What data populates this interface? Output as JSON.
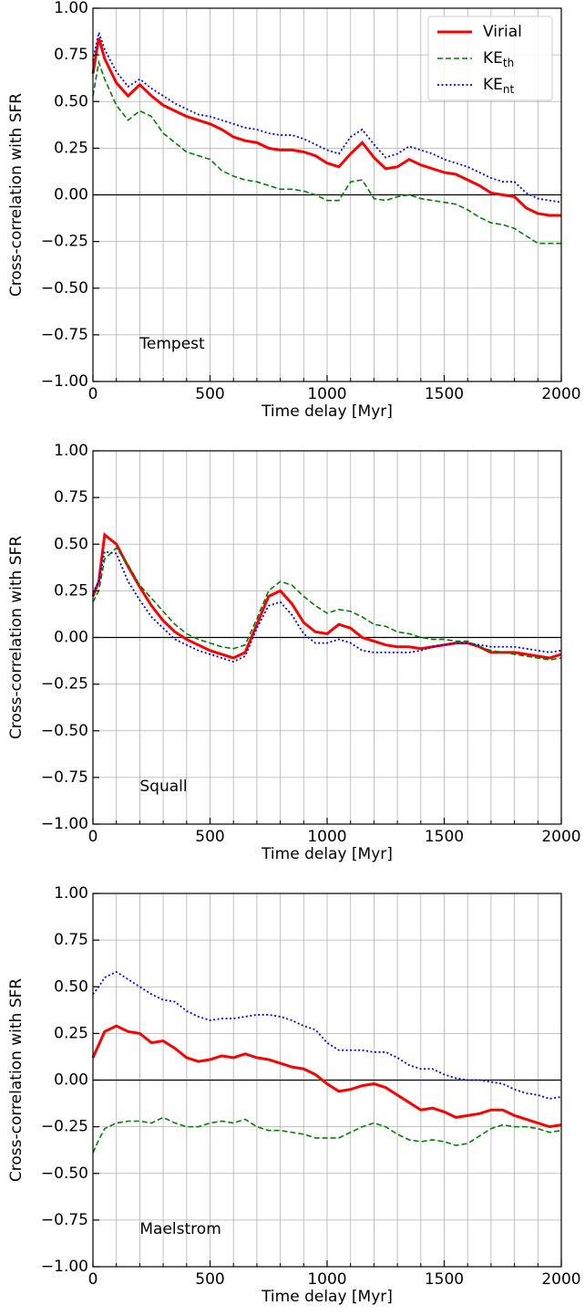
{
  "chart_data": [
    {
      "type": "line",
      "annotation": {
        "text": "Tempest",
        "x": 200,
        "y": -0.8
      },
      "xlabel": "Time delay [Myr]",
      "ylabel": "Cross-correlation with SFR",
      "x": [
        0,
        25,
        50,
        100,
        150,
        200,
        250,
        300,
        350,
        400,
        450,
        500,
        550,
        600,
        650,
        700,
        750,
        800,
        850,
        900,
        950,
        1000,
        1050,
        1100,
        1150,
        1200,
        1250,
        1300,
        1350,
        1400,
        1450,
        1500,
        1550,
        1600,
        1650,
        1700,
        1750,
        1800,
        1850,
        1900,
        1950,
        2000
      ],
      "series": [
        {
          "name": "Virial",
          "color": "#ff0000",
          "dash": "solid",
          "values": [
            0.65,
            0.84,
            0.73,
            0.6,
            0.53,
            0.59,
            0.53,
            0.48,
            0.45,
            0.42,
            0.4,
            0.38,
            0.35,
            0.31,
            0.29,
            0.28,
            0.25,
            0.24,
            0.24,
            0.23,
            0.21,
            0.17,
            0.15,
            0.22,
            0.28,
            0.2,
            0.14,
            0.15,
            0.19,
            0.16,
            0.14,
            0.12,
            0.11,
            0.08,
            0.05,
            0.01,
            0.0,
            -0.01,
            -0.07,
            -0.1,
            -0.11,
            -0.11
          ]
        },
        {
          "name": "KE",
          "name_sub": "th",
          "color": "#008000",
          "dash": "dashed",
          "values": [
            0.53,
            0.71,
            0.62,
            0.48,
            0.4,
            0.45,
            0.42,
            0.33,
            0.28,
            0.23,
            0.21,
            0.19,
            0.13,
            0.1,
            0.08,
            0.07,
            0.05,
            0.03,
            0.03,
            0.02,
            0.0,
            -0.03,
            -0.03,
            0.07,
            0.08,
            -0.02,
            -0.03,
            -0.01,
            0.0,
            -0.02,
            -0.03,
            -0.04,
            -0.05,
            -0.08,
            -0.12,
            -0.15,
            -0.16,
            -0.18,
            -0.22,
            -0.26,
            -0.26,
            -0.26
          ]
        },
        {
          "name": "KE",
          "name_sub": "nt",
          "color": "#0000ff",
          "dash": "dotted",
          "values": [
            0.72,
            0.87,
            0.78,
            0.66,
            0.58,
            0.62,
            0.57,
            0.53,
            0.49,
            0.46,
            0.43,
            0.42,
            0.4,
            0.38,
            0.36,
            0.35,
            0.33,
            0.32,
            0.32,
            0.3,
            0.27,
            0.24,
            0.22,
            0.31,
            0.35,
            0.27,
            0.2,
            0.22,
            0.26,
            0.24,
            0.22,
            0.19,
            0.17,
            0.15,
            0.12,
            0.09,
            0.07,
            0.07,
            0.01,
            -0.02,
            -0.03,
            -0.04
          ]
        }
      ],
      "legend": "upper right",
      "hline": 0,
      "grid": true,
      "xlim": [
        0,
        2000
      ],
      "xticks": [
        0,
        500,
        1000,
        1500,
        2000
      ],
      "xminorticks": [
        100,
        200,
        300,
        400,
        600,
        700,
        800,
        900,
        1100,
        1200,
        1300,
        1400,
        1600,
        1700,
        1800,
        1900
      ],
      "ylim": [
        -1,
        1
      ],
      "yticks": [
        {
          "value": -1,
          "label": "−1.00"
        },
        {
          "value": -0.75,
          "label": "−0.75"
        },
        {
          "value": -0.5,
          "label": "−0.50"
        },
        {
          "value": -0.25,
          "label": "−0.25"
        },
        {
          "value": 0,
          "label": "0.00"
        },
        {
          "value": 0.25,
          "label": "0.25"
        },
        {
          "value": 0.5,
          "label": "0.50"
        },
        {
          "value": 0.75,
          "label": "0.75"
        },
        {
          "value": 1,
          "label": "1.00"
        }
      ]
    },
    {
      "type": "line",
      "annotation": {
        "text": "Squall",
        "x": 200,
        "y": -0.8
      },
      "xlabel": "Time delay [Myr]",
      "ylabel": "Cross-correlation with SFR",
      "x": [
        0,
        25,
        50,
        100,
        150,
        200,
        250,
        300,
        350,
        400,
        450,
        500,
        550,
        600,
        650,
        700,
        750,
        800,
        850,
        900,
        950,
        1000,
        1050,
        1100,
        1150,
        1200,
        1250,
        1300,
        1350,
        1400,
        1450,
        1500,
        1550,
        1600,
        1650,
        1700,
        1750,
        1800,
        1850,
        1900,
        1950,
        2000
      ],
      "series": [
        {
          "color": "#ff0000",
          "dash": "solid",
          "values": [
            0.22,
            0.3,
            0.55,
            0.5,
            0.38,
            0.27,
            0.17,
            0.09,
            0.03,
            -0.01,
            -0.04,
            -0.07,
            -0.09,
            -0.11,
            -0.08,
            0.07,
            0.22,
            0.25,
            0.18,
            0.08,
            0.03,
            0.02,
            0.07,
            0.05,
            0.0,
            -0.02,
            -0.04,
            -0.05,
            -0.05,
            -0.06,
            -0.05,
            -0.04,
            -0.03,
            -0.03,
            -0.05,
            -0.08,
            -0.08,
            -0.08,
            -0.09,
            -0.1,
            -0.11,
            -0.09
          ]
        },
        {
          "color": "#008000",
          "dash": "dashed",
          "values": [
            0.19,
            0.25,
            0.42,
            0.48,
            0.39,
            0.28,
            0.21,
            0.14,
            0.07,
            0.02,
            -0.01,
            -0.03,
            -0.05,
            -0.06,
            -0.04,
            0.1,
            0.25,
            0.3,
            0.28,
            0.22,
            0.17,
            0.13,
            0.15,
            0.14,
            0.11,
            0.07,
            0.06,
            0.03,
            0.02,
            0.0,
            -0.01,
            -0.01,
            -0.02,
            -0.02,
            -0.05,
            -0.07,
            -0.08,
            -0.09,
            -0.1,
            -0.11,
            -0.12,
            -0.11
          ]
        },
        {
          "color": "#0000ff",
          "dash": "dotted",
          "values": [
            0.24,
            0.3,
            0.46,
            0.45,
            0.3,
            0.2,
            0.11,
            0.05,
            -0.01,
            -0.04,
            -0.07,
            -0.09,
            -0.11,
            -0.13,
            -0.1,
            0.05,
            0.17,
            0.19,
            0.12,
            0.02,
            -0.03,
            -0.03,
            -0.01,
            -0.03,
            -0.07,
            -0.08,
            -0.08,
            -0.08,
            -0.08,
            -0.07,
            -0.05,
            -0.04,
            -0.03,
            -0.03,
            -0.04,
            -0.05,
            -0.05,
            -0.05,
            -0.06,
            -0.07,
            -0.08,
            -0.07
          ]
        }
      ],
      "hline": 0,
      "grid": true,
      "xlim": [
        0,
        2000
      ],
      "xticks": [
        0,
        500,
        1000,
        1500,
        2000
      ],
      "xminorticks": [
        100,
        200,
        300,
        400,
        600,
        700,
        800,
        900,
        1100,
        1200,
        1300,
        1400,
        1600,
        1700,
        1800,
        1900
      ],
      "ylim": [
        -1,
        1
      ],
      "yticks": [
        {
          "value": -1,
          "label": "−1.00"
        },
        {
          "value": -0.75,
          "label": "−0.75"
        },
        {
          "value": -0.5,
          "label": "−0.50"
        },
        {
          "value": -0.25,
          "label": "−0.25"
        },
        {
          "value": 0,
          "label": "0.00"
        },
        {
          "value": 0.25,
          "label": "0.25"
        },
        {
          "value": 0.5,
          "label": "0.50"
        },
        {
          "value": 0.75,
          "label": "0.75"
        },
        {
          "value": 1,
          "label": "1.00"
        }
      ]
    },
    {
      "type": "line",
      "annotation": {
        "text": "Maelstrom",
        "x": 200,
        "y": -0.8
      },
      "xlabel": "Time delay [Myr]",
      "ylabel": "Cross-correlation with SFR",
      "x": [
        0,
        25,
        50,
        100,
        150,
        200,
        250,
        300,
        350,
        400,
        450,
        500,
        550,
        600,
        650,
        700,
        750,
        800,
        850,
        900,
        950,
        1000,
        1050,
        1100,
        1150,
        1200,
        1250,
        1300,
        1350,
        1400,
        1450,
        1500,
        1550,
        1600,
        1650,
        1700,
        1750,
        1800,
        1850,
        1900,
        1950,
        2000
      ],
      "series": [
        {
          "color": "#ff0000",
          "dash": "solid",
          "values": [
            0.12,
            0.19,
            0.26,
            0.29,
            0.26,
            0.25,
            0.2,
            0.21,
            0.17,
            0.12,
            0.1,
            0.11,
            0.13,
            0.12,
            0.14,
            0.12,
            0.11,
            0.09,
            0.07,
            0.06,
            0.03,
            -0.02,
            -0.06,
            -0.05,
            -0.03,
            -0.02,
            -0.04,
            -0.08,
            -0.12,
            -0.16,
            -0.15,
            -0.17,
            -0.2,
            -0.19,
            -0.18,
            -0.16,
            -0.16,
            -0.19,
            -0.21,
            -0.23,
            -0.25,
            -0.24
          ]
        },
        {
          "color": "#008000",
          "dash": "dashed",
          "values": [
            -0.39,
            -0.32,
            -0.26,
            -0.23,
            -0.22,
            -0.22,
            -0.23,
            -0.2,
            -0.23,
            -0.25,
            -0.25,
            -0.23,
            -0.22,
            -0.23,
            -0.21,
            -0.25,
            -0.27,
            -0.27,
            -0.28,
            -0.29,
            -0.31,
            -0.31,
            -0.31,
            -0.28,
            -0.25,
            -0.23,
            -0.25,
            -0.29,
            -0.32,
            -0.33,
            -0.32,
            -0.33,
            -0.35,
            -0.34,
            -0.3,
            -0.26,
            -0.24,
            -0.25,
            -0.25,
            -0.26,
            -0.28,
            -0.27
          ]
        },
        {
          "color": "#0000ff",
          "dash": "dotted",
          "values": [
            0.46,
            0.5,
            0.55,
            0.58,
            0.54,
            0.5,
            0.46,
            0.43,
            0.42,
            0.37,
            0.34,
            0.32,
            0.33,
            0.33,
            0.34,
            0.35,
            0.35,
            0.34,
            0.32,
            0.29,
            0.27,
            0.2,
            0.16,
            0.16,
            0.16,
            0.15,
            0.15,
            0.12,
            0.08,
            0.06,
            0.06,
            0.03,
            0.01,
            0.0,
            0.0,
            -0.01,
            -0.02,
            -0.05,
            -0.07,
            -0.08,
            -0.1,
            -0.09
          ]
        }
      ],
      "hline": 0,
      "grid": true,
      "xlim": [
        0,
        2000
      ],
      "xticks": [
        0,
        500,
        1000,
        1500,
        2000
      ],
      "xminorticks": [
        100,
        200,
        300,
        400,
        600,
        700,
        800,
        900,
        1100,
        1200,
        1300,
        1400,
        1600,
        1700,
        1800,
        1900
      ],
      "ylim": [
        -1,
        1
      ],
      "yticks": [
        {
          "value": -1,
          "label": "−1.00"
        },
        {
          "value": -0.75,
          "label": "−0.75"
        },
        {
          "value": -0.5,
          "label": "−0.50"
        },
        {
          "value": -0.25,
          "label": "−0.25"
        },
        {
          "value": 0,
          "label": "0.00"
        },
        {
          "value": 0.25,
          "label": "0.25"
        },
        {
          "value": 0.5,
          "label": "0.50"
        },
        {
          "value": 0.75,
          "label": "0.75"
        },
        {
          "value": 1,
          "label": "1.00"
        }
      ]
    }
  ]
}
